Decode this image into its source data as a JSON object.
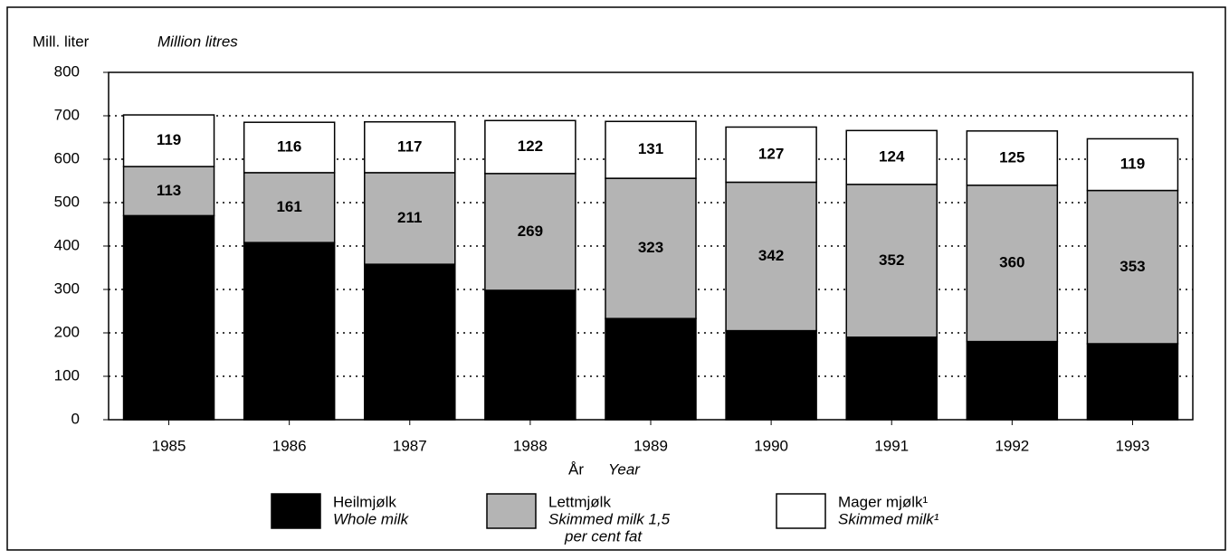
{
  "chart_data": {
    "type": "stacked_bar",
    "y_label": "Mill. liter",
    "y_label_en": "Million litres",
    "x_label": "År",
    "x_label_en": "Year",
    "categories": [
      "1985",
      "1986",
      "1987",
      "1988",
      "1989",
      "1990",
      "1991",
      "1992",
      "1993"
    ],
    "series": [
      {
        "name": "Heilmjølk",
        "name_en": [
          "Whole milk"
        ],
        "color": "#000000",
        "show_labels": false,
        "values": [
          470,
          408,
          358,
          298,
          233,
          205,
          190,
          180,
          175
        ]
      },
      {
        "name": "Lettmjølk",
        "name_en": [
          "Skimmed milk 1,5",
          "per cent fat"
        ],
        "color": "#b4b4b4",
        "show_labels": true,
        "values": [
          113,
          161,
          211,
          269,
          323,
          342,
          352,
          360,
          353
        ]
      },
      {
        "name": "Mager mjølk¹",
        "name_en": [
          "Skimmed milk¹"
        ],
        "color": "#ffffff",
        "show_labels": true,
        "values": [
          119,
          116,
          117,
          122,
          131,
          127,
          124,
          125,
          119
        ]
      }
    ],
    "ylim": [
      0,
      800
    ],
    "yticks": [
      0,
      100,
      200,
      300,
      400,
      500,
      600,
      700,
      800
    ],
    "grid": true
  }
}
